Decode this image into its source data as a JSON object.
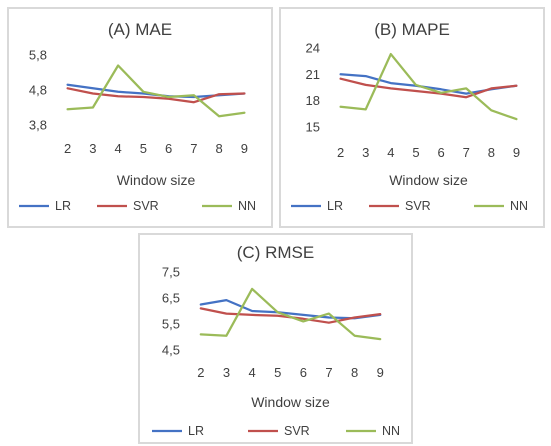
{
  "chart_data": [
    {
      "type": "line",
      "title": "(A) MAE",
      "xlabel": "Window size",
      "ylabel": "",
      "x": [
        "2",
        "3",
        "4",
        "5",
        "6",
        "7",
        "8",
        "9"
      ],
      "yticks": [
        "3,8",
        "4,8",
        "5,8"
      ],
      "ylim": [
        3.8,
        5.8
      ],
      "grid": false,
      "legend_position": "bottom",
      "series": [
        {
          "name": "LR",
          "color": "#4472c4",
          "values": [
            4.95,
            4.85,
            4.75,
            4.7,
            4.62,
            4.6,
            4.65,
            4.7
          ]
        },
        {
          "name": "SVR",
          "color": "#c0504d",
          "values": [
            4.85,
            4.7,
            4.62,
            4.6,
            4.55,
            4.45,
            4.68,
            4.7
          ]
        },
        {
          "name": "NN",
          "color": "#9bbb59",
          "values": [
            4.25,
            4.3,
            5.5,
            4.75,
            4.6,
            4.65,
            4.05,
            4.15
          ]
        }
      ]
    },
    {
      "type": "line",
      "title": "(B) MAPE",
      "xlabel": "Window size",
      "ylabel": "",
      "x": [
        "2",
        "3",
        "4",
        "5",
        "6",
        "7",
        "8",
        "9"
      ],
      "yticks": [
        "15",
        "18",
        "21",
        "24"
      ],
      "ylim": [
        15,
        24
      ],
      "grid": false,
      "legend_position": "bottom",
      "series": [
        {
          "name": "LR",
          "color": "#4472c4",
          "values": [
            21.0,
            20.8,
            20.0,
            19.7,
            19.3,
            18.8,
            19.3,
            19.7
          ]
        },
        {
          "name": "SVR",
          "color": "#c0504d",
          "values": [
            20.5,
            19.8,
            19.4,
            19.1,
            18.8,
            18.4,
            19.4,
            19.7
          ]
        },
        {
          "name": "NN",
          "color": "#9bbb59",
          "values": [
            17.3,
            17.0,
            23.3,
            19.8,
            18.9,
            19.4,
            16.9,
            15.9
          ]
        }
      ]
    },
    {
      "type": "line",
      "title": "(C) RMSE",
      "xlabel": "Window size",
      "ylabel": "",
      "x": [
        "2",
        "3",
        "4",
        "5",
        "6",
        "7",
        "8",
        "9"
      ],
      "yticks": [
        "4,5",
        "5,5",
        "6,5",
        "7,5"
      ],
      "ylim": [
        4.5,
        7.5
      ],
      "grid": false,
      "legend_position": "bottom",
      "series": [
        {
          "name": "LR",
          "color": "#4472c4",
          "values": [
            6.25,
            6.42,
            6.0,
            5.95,
            5.85,
            5.75,
            5.72,
            5.85
          ]
        },
        {
          "name": "SVR",
          "color": "#c0504d",
          "values": [
            6.1,
            5.9,
            5.85,
            5.82,
            5.7,
            5.55,
            5.75,
            5.88
          ]
        },
        {
          "name": "NN",
          "color": "#9bbb59",
          "values": [
            5.1,
            5.05,
            6.85,
            5.95,
            5.6,
            5.9,
            5.05,
            4.92
          ]
        }
      ]
    }
  ]
}
